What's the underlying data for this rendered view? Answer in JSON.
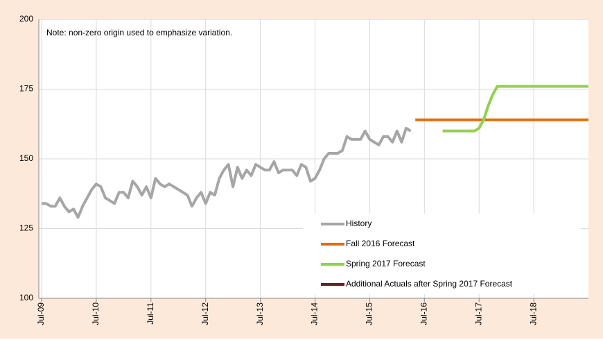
{
  "chart_data": {
    "type": "line",
    "annotation": "Note: non-zero origin used to emphasize variation.",
    "ylim": [
      100,
      200
    ],
    "yticks": [
      100,
      125,
      150,
      175,
      200
    ],
    "xlim": [
      "2009-07",
      "2019-07"
    ],
    "xticks": [
      {
        "value": "2009-07",
        "label": "Jul-09"
      },
      {
        "value": "2010-07",
        "label": "Jul-10"
      },
      {
        "value": "2011-07",
        "label": "Jul-11"
      },
      {
        "value": "2012-07",
        "label": "Jul-12"
      },
      {
        "value": "2013-07",
        "label": "Jul-13"
      },
      {
        "value": "2014-07",
        "label": "Jul-14"
      },
      {
        "value": "2015-07",
        "label": "Jul-15"
      },
      {
        "value": "2016-07",
        "label": "Jul-16"
      },
      {
        "value": "2017-07",
        "label": "Jul-17"
      },
      {
        "value": "2018-07",
        "label": "Jul-18"
      }
    ],
    "grid": true,
    "legend": "bottom-right",
    "series": [
      {
        "name": "History",
        "color": "#a6a6a6",
        "x": [
          "2009-07",
          "2009-08",
          "2009-09",
          "2009-10",
          "2009-11",
          "2009-12",
          "2010-01",
          "2010-02",
          "2010-03",
          "2010-04",
          "2010-05",
          "2010-06",
          "2010-07",
          "2010-08",
          "2010-09",
          "2010-10",
          "2010-11",
          "2010-12",
          "2011-01",
          "2011-02",
          "2011-03",
          "2011-04",
          "2011-05",
          "2011-06",
          "2011-07",
          "2011-08",
          "2011-09",
          "2011-10",
          "2011-11",
          "2011-12",
          "2012-01",
          "2012-02",
          "2012-03",
          "2012-04",
          "2012-05",
          "2012-06",
          "2012-07",
          "2012-08",
          "2012-09",
          "2012-10",
          "2012-11",
          "2012-12",
          "2013-01",
          "2013-02",
          "2013-03",
          "2013-04",
          "2013-05",
          "2013-06",
          "2013-07",
          "2013-08",
          "2013-09",
          "2013-10",
          "2013-11",
          "2013-12",
          "2014-01",
          "2014-02",
          "2014-03",
          "2014-04",
          "2014-05",
          "2014-06",
          "2014-07",
          "2014-08",
          "2014-09",
          "2014-10",
          "2014-11",
          "2014-12",
          "2015-01",
          "2015-02",
          "2015-03",
          "2015-04",
          "2015-05",
          "2015-06",
          "2015-07",
          "2015-08",
          "2015-09",
          "2015-10",
          "2015-11",
          "2015-12",
          "2016-01",
          "2016-02",
          "2016-03",
          "2016-04"
        ],
        "values": [
          134,
          134,
          133,
          133,
          136,
          133,
          131,
          132,
          129,
          133,
          136,
          139,
          141,
          140,
          136,
          135,
          134,
          138,
          138,
          136,
          142,
          140,
          137,
          140,
          136,
          143,
          141,
          140,
          141,
          140,
          139,
          138,
          137,
          133,
          136,
          138,
          134,
          138,
          137,
          143,
          146,
          148,
          140,
          147,
          143,
          146,
          144,
          148,
          147,
          146,
          146,
          149,
          145,
          146,
          146,
          146,
          144,
          148,
          147,
          142,
          143,
          146,
          150,
          152,
          152,
          152,
          153,
          158,
          157,
          157,
          157,
          160,
          157,
          156,
          155,
          158,
          158,
          156,
          160,
          156,
          161,
          160
        ]
      },
      {
        "name": "Fall 2016 Forecast",
        "color": "#e46c0a",
        "x": [
          "2016-05",
          "2019-07"
        ],
        "values": [
          164,
          164
        ]
      },
      {
        "name": "Spring 2017 Forecast",
        "color": "#92d050",
        "x": [
          "2016-11",
          "2017-06",
          "2017-07",
          "2017-08",
          "2017-09",
          "2017-10",
          "2017-11",
          "2019-07"
        ],
        "values": [
          160,
          160,
          161,
          164,
          169,
          173,
          176,
          176
        ]
      },
      {
        "name": "Additional Actuals after Spring 2017 Forecast",
        "color": "#632523",
        "x": [],
        "values": []
      }
    ]
  }
}
